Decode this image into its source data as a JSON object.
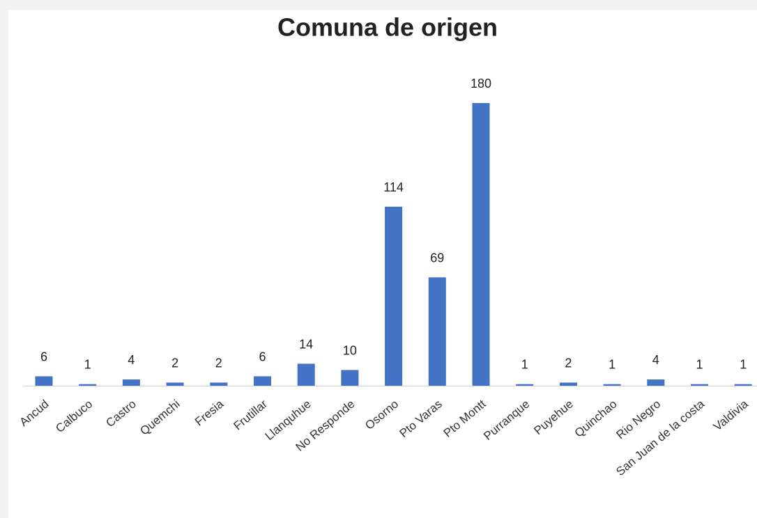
{
  "chart_data": {
    "type": "bar",
    "title": "Comuna de origen",
    "categories": [
      "Ancud",
      "Calbuco",
      "Castro",
      "Quemchi",
      "Fresia",
      "Frutillar",
      "Llanquhue",
      "No Responde",
      "Osorno",
      "Pto Varas",
      "Pto Montt",
      "Purranque",
      "Puyehue",
      "Quinchao",
      "Rio Negro",
      "San Juan de la costa",
      "Valdivia"
    ],
    "values": [
      6,
      1,
      4,
      2,
      2,
      6,
      14,
      10,
      114,
      69,
      180,
      1,
      2,
      1,
      4,
      1,
      1
    ],
    "color": "#4472c4"
  }
}
